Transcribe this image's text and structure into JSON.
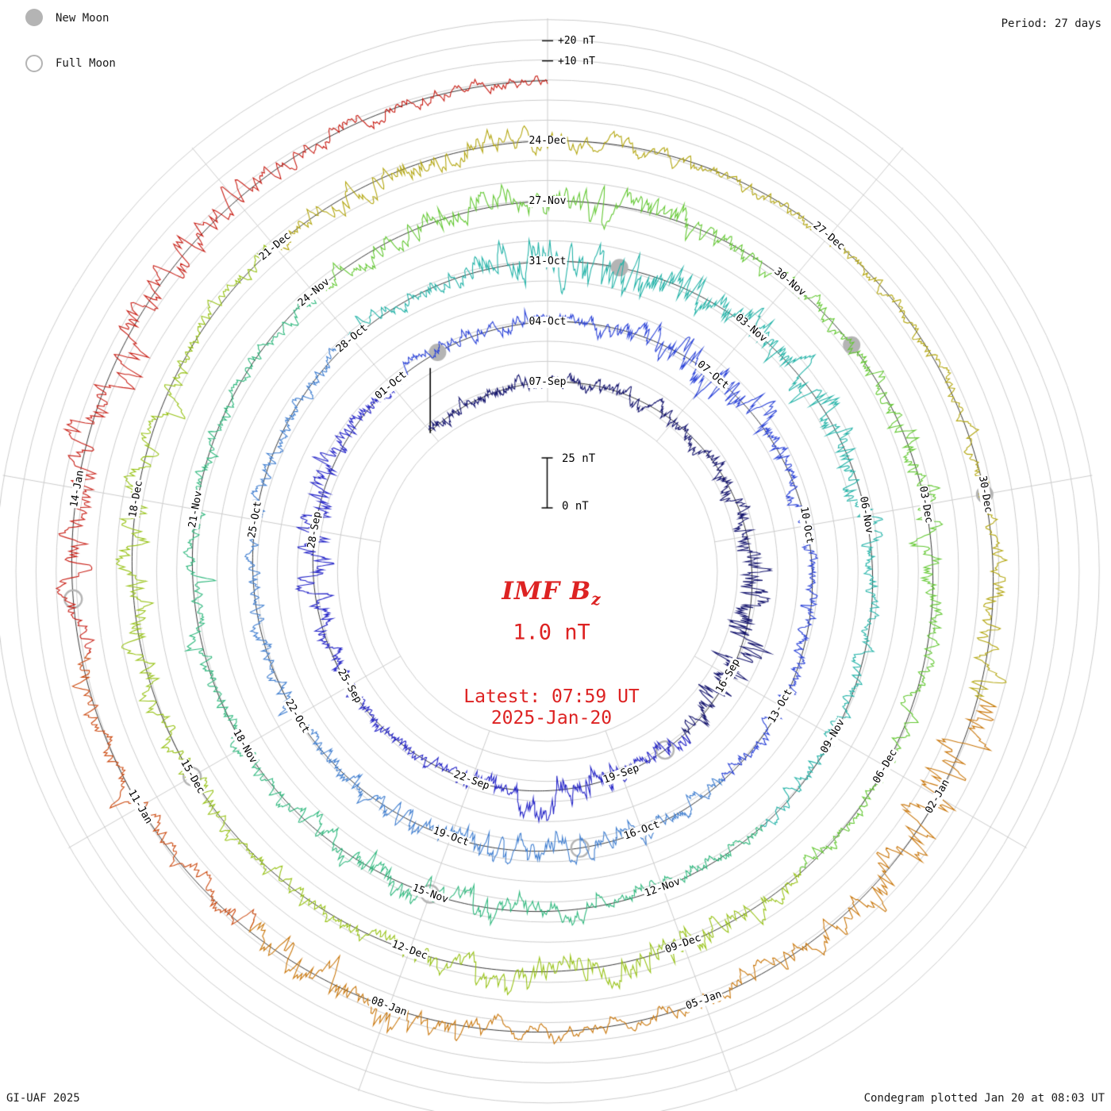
{
  "colors": {
    "accent_red": "#dd2222",
    "grid_gray": "#cccccc",
    "baseline_black": "#000000",
    "moon_gray": "#b4b4b4"
  },
  "legend": {
    "new_moon_label": "New Moon",
    "full_moon_label": "Full Moon"
  },
  "corner": {
    "period": "Period: 27 days",
    "credit": "GI-UAF 2025",
    "plotted": "Condegram plotted Jan 20 at 08:03 UT"
  },
  "center": {
    "title_main": "IMF B",
    "title_sub": "z",
    "value": "1.0 nT",
    "latest_line1": "Latest: 07:59 UT",
    "latest_line2": "2025-Jan-20"
  },
  "scalebar": {
    "top_label": "25 nT",
    "bottom_label": "0 nT"
  },
  "axis": {
    "plus20": "+20 nT",
    "plus10": "+10 nT"
  },
  "chart_data": {
    "type": "line",
    "subtype": "polar-spiral-condegram",
    "title": "IMF Bz",
    "unit": "nT",
    "current_value_nT": 1.0,
    "latest_time": "07:59 UT",
    "latest_date": "2025-Jan-20",
    "period_days": 27,
    "total_days": 138,
    "radial_scale": {
      "zero_label": "0 nT",
      "span_label": "25 nT",
      "span_nT": 25,
      "outer_gridline_labels": [
        "+10 nT",
        "+20 nT"
      ]
    },
    "spokes": [
      {
        "angle": -90,
        "labels": [
          {
            "text": "07-Sep",
            "day": 3
          },
          {
            "text": "04-Oct",
            "day": 30
          },
          {
            "text": "31-Oct",
            "day": 57
          },
          {
            "text": "27-Nov",
            "day": 84
          },
          {
            "text": "24-Dec",
            "day": 111
          }
        ]
      },
      {
        "angle": -50,
        "labels": [
          {
            "text": "07-Oct",
            "day": 33
          },
          {
            "text": "03-Nov",
            "day": 60
          },
          {
            "text": "30-Nov",
            "day": 87
          },
          {
            "text": "27-Dec",
            "day": 114
          }
        ]
      },
      {
        "angle": -10,
        "labels": [
          {
            "text": "10-Oct",
            "day": 36
          },
          {
            "text": "06-Nov",
            "day": 63
          },
          {
            "text": "03-Dec",
            "day": 90
          },
          {
            "text": "30-Dec",
            "day": 117
          }
        ]
      },
      {
        "angle": 30,
        "labels": [
          {
            "text": "16-Sep",
            "day": 12
          },
          {
            "text": "13-Oct",
            "day": 39
          },
          {
            "text": "09-Nov",
            "day": 66
          },
          {
            "text": "06-Dec",
            "day": 93
          },
          {
            "text": "02-Jan",
            "day": 120
          }
        ]
      },
      {
        "angle": 70,
        "labels": [
          {
            "text": "19-Sep",
            "day": 15
          },
          {
            "text": "16-Oct",
            "day": 42
          },
          {
            "text": "12-Nov",
            "day": 69
          },
          {
            "text": "09-Dec",
            "day": 96
          },
          {
            "text": "05-Jan",
            "day": 123
          }
        ]
      },
      {
        "angle": 110,
        "labels": [
          {
            "text": "22-Sep",
            "day": 18
          },
          {
            "text": "19-Oct",
            "day": 45
          },
          {
            "text": "15-Nov",
            "day": 72
          },
          {
            "text": "12-Dec",
            "day": 99
          },
          {
            "text": "08-Jan",
            "day": 126
          }
        ]
      },
      {
        "angle": 150,
        "labels": [
          {
            "text": "25-Sep",
            "day": 21
          },
          {
            "text": "22-Oct",
            "day": 48
          },
          {
            "text": "18-Nov",
            "day": 75
          },
          {
            "text": "15-Dec",
            "day": 102
          },
          {
            "text": "11-Jan",
            "day": 129
          }
        ]
      },
      {
        "angle": 190,
        "labels": [
          {
            "text": "28-Sep",
            "day": 24
          },
          {
            "text": "25-Oct",
            "day": 51
          },
          {
            "text": "21-Nov",
            "day": 78
          },
          {
            "text": "18-Dec",
            "day": 105
          },
          {
            "text": "14-Jan",
            "day": 132
          }
        ]
      },
      {
        "angle": 230,
        "labels": [
          {
            "text": "01-Oct",
            "day": 27
          },
          {
            "text": "28-Oct",
            "day": 54
          },
          {
            "text": "24-Nov",
            "day": 81
          },
          {
            "text": "21-Dec",
            "day": 108
          }
        ]
      }
    ],
    "segments": [
      {
        "from": 0,
        "to": 13.5,
        "color": "#15156e"
      },
      {
        "from": 13.5,
        "to": 27,
        "color": "#2525c8"
      },
      {
        "from": 27,
        "to": 40.5,
        "color": "#2b43d8"
      },
      {
        "from": 40.5,
        "to": 54,
        "color": "#3f7ed0"
      },
      {
        "from": 54,
        "to": 67.5,
        "color": "#23b3a8"
      },
      {
        "from": 67.5,
        "to": 81,
        "color": "#2eb87d"
      },
      {
        "from": 81,
        "to": 94.5,
        "color": "#63c832"
      },
      {
        "from": 94.5,
        "to": 108,
        "color": "#97c215"
      },
      {
        "from": 108,
        "to": 119,
        "color": "#b3a60f"
      },
      {
        "from": 119,
        "to": 127.5,
        "color": "#c9760a"
      },
      {
        "from": 127.5,
        "to": 130.5,
        "color": "#cc4a10"
      },
      {
        "from": 130.5,
        "to": 138,
        "color": "#c81d14"
      }
    ],
    "moons": {
      "new_moon_days": [
        28,
        58,
        88,
        117
      ],
      "full_moon_days": [
        14,
        43,
        72,
        102,
        131
      ]
    },
    "activity_bursts": [
      {
        "day": 11,
        "amp": 3.0,
        "width": 2.0
      },
      {
        "day": 16.5,
        "amp": 2.6,
        "width": 1.2
      },
      {
        "day": 24,
        "amp": 1.5,
        "width": 2.0
      },
      {
        "day": 33,
        "amp": 2.5,
        "width": 1.5
      },
      {
        "day": 44,
        "amp": 1.8,
        "width": 2.0
      },
      {
        "day": 57.5,
        "amp": 4.0,
        "width": 1.5
      },
      {
        "day": 61,
        "amp": 2.5,
        "width": 2.0
      },
      {
        "day": 72,
        "amp": 1.8,
        "width": 2.0
      },
      {
        "day": 84,
        "amp": 2.0,
        "width": 2.0
      },
      {
        "day": 90,
        "amp": 1.5,
        "width": 1.5
      },
      {
        "day": 97,
        "amp": 2.5,
        "width": 2.0
      },
      {
        "day": 104,
        "amp": 1.5,
        "width": 2.0
      },
      {
        "day": 110,
        "amp": 1.8,
        "width": 1.5
      },
      {
        "day": 120,
        "amp": 3.2,
        "width": 2.0
      },
      {
        "day": 126.5,
        "amp": 2.4,
        "width": 1.5
      },
      {
        "day": 133,
        "amp": 2.8,
        "width": 2.5
      }
    ]
  }
}
